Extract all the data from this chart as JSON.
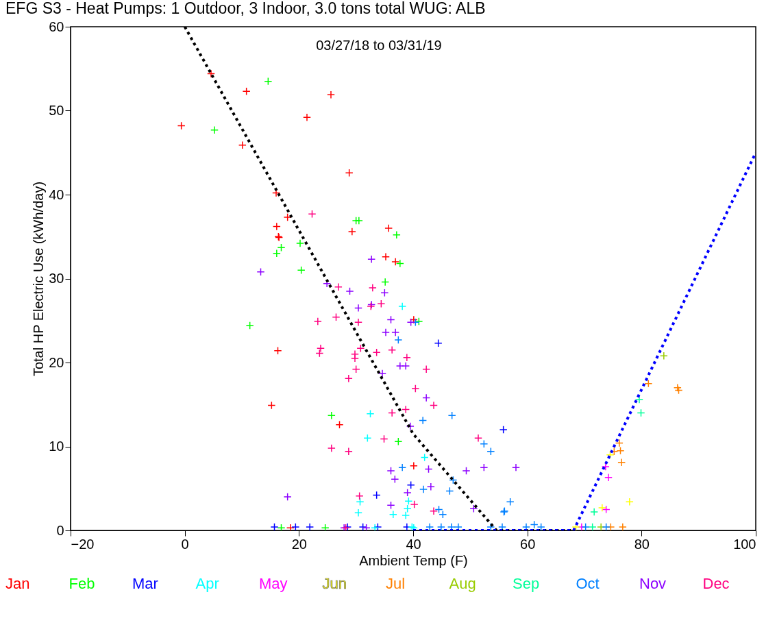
{
  "chart_data": {
    "type": "scatter",
    "title": "EFG S3 - Heat Pumps: 1 Outdoor, 3 Indoor,  3.0 tons total      WUG: ALB",
    "xlabel": "Ambient Temp (F)",
    "ylabel": "Total HP Electric Use (kWh/day)",
    "annotations": [
      "03/27/18 to 03/31/19"
    ],
    "xlim": [
      -20,
      100
    ],
    "ylim": [
      0,
      60
    ],
    "xticks": [
      -20,
      0,
      20,
      40,
      60,
      80,
      100
    ],
    "yticks": [
      0,
      10,
      20,
      30,
      40,
      50,
      60
    ],
    "grid": false,
    "legend": "bottom",
    "marker": "cross",
    "series": [
      {
        "name": "Jan",
        "color": "#ff0000",
        "x": [
          -0.6,
          10.8,
          10.1,
          25.6,
          21.4,
          28.8,
          16.0,
          16.4,
          18.0,
          16.1,
          16.5,
          29.3,
          35.7,
          35.2,
          36.9,
          40.1,
          16.3,
          15.2,
          27.1,
          40.1,
          18.5,
          4.6
        ],
        "values": [
          48.2,
          52.3,
          45.9,
          51.9,
          49.2,
          42.6,
          40.2,
          35.0,
          37.3,
          36.2,
          34.9,
          35.6,
          36.0,
          32.6,
          32.0,
          25.1,
          21.4,
          14.9,
          12.6,
          7.7,
          0.3,
          54.4
        ]
      },
      {
        "name": "Feb",
        "color": "#00ff00",
        "x": [
          14.6,
          5.2,
          20.2,
          16.9,
          16.1,
          20.4,
          30.0,
          30.5,
          37.1,
          37.7,
          35.1,
          41.0,
          11.4,
          25.7,
          37.4,
          16.9,
          24.6
        ],
        "values": [
          53.5,
          47.7,
          34.2,
          33.7,
          33.0,
          31.0,
          36.9,
          36.9,
          35.2,
          31.8,
          29.6,
          24.9,
          24.4,
          13.7,
          10.6,
          0.3,
          0.3
        ]
      },
      {
        "name": "Mar",
        "color": "#0000ff",
        "x": [
          44.4,
          39.6,
          33.6,
          55.8,
          15.7,
          19.4,
          21.9,
          28.5,
          33.8,
          38.9,
          31.2
        ],
        "values": [
          22.3,
          5.4,
          4.2,
          12.0,
          0.4,
          0.4,
          0.4,
          0.4,
          0.4,
          0.4,
          0.4
        ]
      },
      {
        "name": "Apr",
        "color": "#00ffff",
        "x": [
          38.1,
          32.5,
          32.0,
          42.0,
          30.7,
          30.4,
          36.5,
          38.7,
          39.0,
          39.2,
          39.8,
          33.3,
          40.1
        ],
        "values": [
          26.7,
          13.9,
          11.0,
          8.7,
          3.4,
          2.1,
          1.9,
          1.8,
          2.6,
          3.5,
          0.4,
          0.3,
          0.3
        ]
      },
      {
        "name": "May",
        "color": "#ff00ff",
        "x": [
          73.7,
          74.2,
          73.8,
          69.5
        ],
        "values": [
          7.6,
          6.3,
          2.5,
          0.4
        ]
      },
      {
        "name": "Jun",
        "color": "#ffff00",
        "x": [
          77.9,
          73.1,
          74.5,
          68.5
        ],
        "values": [
          3.4,
          2.7,
          9.0,
          0.4
        ]
      },
      {
        "name": "Jul",
        "color": "#ff8000",
        "x": [
          81.2,
          86.3,
          86.5,
          76.1,
          76.3,
          76.5,
          75.2,
          76.7,
          74.6
        ],
        "values": [
          17.5,
          17.0,
          16.7,
          10.4,
          9.5,
          8.1,
          9.4,
          0.4,
          0.4
        ]
      },
      {
        "name": "Aug",
        "color": "#99cc00",
        "x": [
          83.9,
          72.9
        ],
        "values": [
          20.8,
          0.4
        ]
      },
      {
        "name": "Sep",
        "color": "#00ff99",
        "x": [
          79.6,
          79.9,
          71.7,
          71.4
        ],
        "values": [
          15.6,
          14.0,
          2.2,
          0.4
        ]
      },
      {
        "name": "Oct",
        "color": "#0080ff",
        "x": [
          37.4,
          40.4,
          46.8,
          41.7,
          52.4,
          53.6,
          38.1,
          41.8,
          46.4,
          47.0,
          44.5,
          45.2,
          56.0,
          57.0,
          55.9,
          42.9,
          44.9,
          46.7,
          47.9,
          53.6,
          55.6,
          59.8,
          61.2,
          62.4,
          70.2,
          73.8
        ],
        "values": [
          22.7,
          24.8,
          13.7,
          13.1,
          10.3,
          9.4,
          7.5,
          4.9,
          4.7,
          6.0,
          2.5,
          1.9,
          2.3,
          3.4,
          2.2,
          0.4,
          0.4,
          0.4,
          0.4,
          0.4,
          0.4,
          0.4,
          0.7,
          0.4,
          0.4,
          0.4
        ]
      },
      {
        "name": "Nov",
        "color": "#8c00ff",
        "x": [
          13.3,
          32.7,
          24.9,
          28.9,
          35.0,
          30.4,
          32.7,
          36.1,
          39.6,
          35.2,
          36.9,
          37.7,
          38.7,
          34.6,
          42.3,
          39.5,
          36.1,
          36.8,
          42.7,
          49.3,
          52.4,
          43.1,
          39.0,
          36.1,
          50.6,
          18.0,
          58.0,
          31.8,
          27.9
        ],
        "values": [
          30.8,
          32.3,
          29.4,
          28.5,
          28.3,
          26.5,
          26.9,
          25.1,
          24.8,
          23.6,
          23.6,
          19.6,
          19.6,
          18.7,
          15.8,
          12.4,
          7.1,
          6.1,
          7.3,
          7.1,
          7.5,
          5.2,
          4.5,
          3.0,
          2.6,
          4.0,
          7.5,
          0.3,
          0.3
        ]
      },
      {
        "name": "Dec",
        "color": "#ff0080",
        "x": [
          22.3,
          26.9,
          32.9,
          34.4,
          32.6,
          23.3,
          26.5,
          30.4,
          23.8,
          23.6,
          29.8,
          29.8,
          30.8,
          33.6,
          36.3,
          38.9,
          42.3,
          30.0,
          28.7,
          40.4,
          43.6,
          38.7,
          36.3,
          34.9,
          25.7,
          28.7,
          51.4,
          30.6,
          40.2,
          43.6,
          28.2
        ],
        "values": [
          37.7,
          29.0,
          28.9,
          27.0,
          26.7,
          24.9,
          25.4,
          24.8,
          21.7,
          21.1,
          21.0,
          20.5,
          21.7,
          21.2,
          21.5,
          20.6,
          19.2,
          19.2,
          18.1,
          16.9,
          14.9,
          14.4,
          14.0,
          10.9,
          9.8,
          9.4,
          11.0,
          4.1,
          3.1,
          2.3,
          0.3
        ]
      },
      {
        "type": "line",
        "color": "#000000",
        "line_style": "dotted",
        "marker": "none",
        "x": [
          0,
          40,
          54.6,
          68.1
        ],
        "values": [
          60,
          11.5,
          0,
          0
        ]
      },
      {
        "type": "line",
        "color": "#0000ff",
        "line_style": "dotted",
        "marker": "none",
        "x": [
          40,
          68.1,
          100
        ],
        "values": [
          0,
          0,
          45.0
        ]
      }
    ]
  }
}
